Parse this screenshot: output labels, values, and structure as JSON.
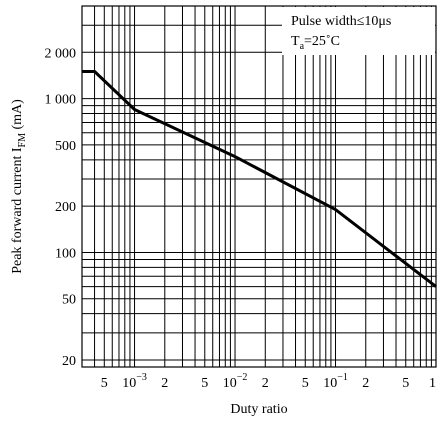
{
  "chart_data": {
    "type": "line",
    "title": "",
    "xlabel": "Duty ratio",
    "ylabel_main": "Peak forward current I",
    "ylabel_sub": "FM",
    "ylabel_unit": " (mA)",
    "x_scale": "log",
    "y_scale": "log",
    "xlim": [
      0.0003,
      1
    ],
    "ylim": [
      18,
      4000
    ],
    "grid": true,
    "x_ticks": [
      {
        "value": 0.0005,
        "mant": "5",
        "exp": ""
      },
      {
        "value": 0.001,
        "mant": "10",
        "exp": "−3"
      },
      {
        "value": 0.002,
        "mant": "2",
        "exp": ""
      },
      {
        "value": 0.005,
        "mant": "5",
        "exp": ""
      },
      {
        "value": 0.01,
        "mant": "10",
        "exp": "−2"
      },
      {
        "value": 0.02,
        "mant": "2",
        "exp": ""
      },
      {
        "value": 0.05,
        "mant": "5",
        "exp": ""
      },
      {
        "value": 0.1,
        "mant": "10",
        "exp": "−1"
      },
      {
        "value": 0.2,
        "mant": "2",
        "exp": ""
      },
      {
        "value": 0.5,
        "mant": "5",
        "exp": ""
      },
      {
        "value": 1,
        "mant": "1",
        "exp": ""
      }
    ],
    "y_ticks": [
      {
        "value": 20,
        "label": "20"
      },
      {
        "value": 50,
        "label": "50"
      },
      {
        "value": 100,
        "label": "100"
      },
      {
        "value": 200,
        "label": "200"
      },
      {
        "value": 500,
        "label": "500"
      },
      {
        "value": 1000,
        "label": "1 000"
      },
      {
        "value": 2000,
        "label": "2 000"
      }
    ],
    "series": [
      {
        "x": [
          0.0003,
          0.0004,
          0.001,
          0.01,
          0.1,
          1
        ],
        "y": [
          1500,
          1500,
          850,
          420,
          190,
          60
        ]
      }
    ],
    "annotation": {
      "line1": "Pulse width≤10μs",
      "line2_main": "T",
      "line2_sub": "a",
      "line2_rest": "=25˚C"
    }
  }
}
